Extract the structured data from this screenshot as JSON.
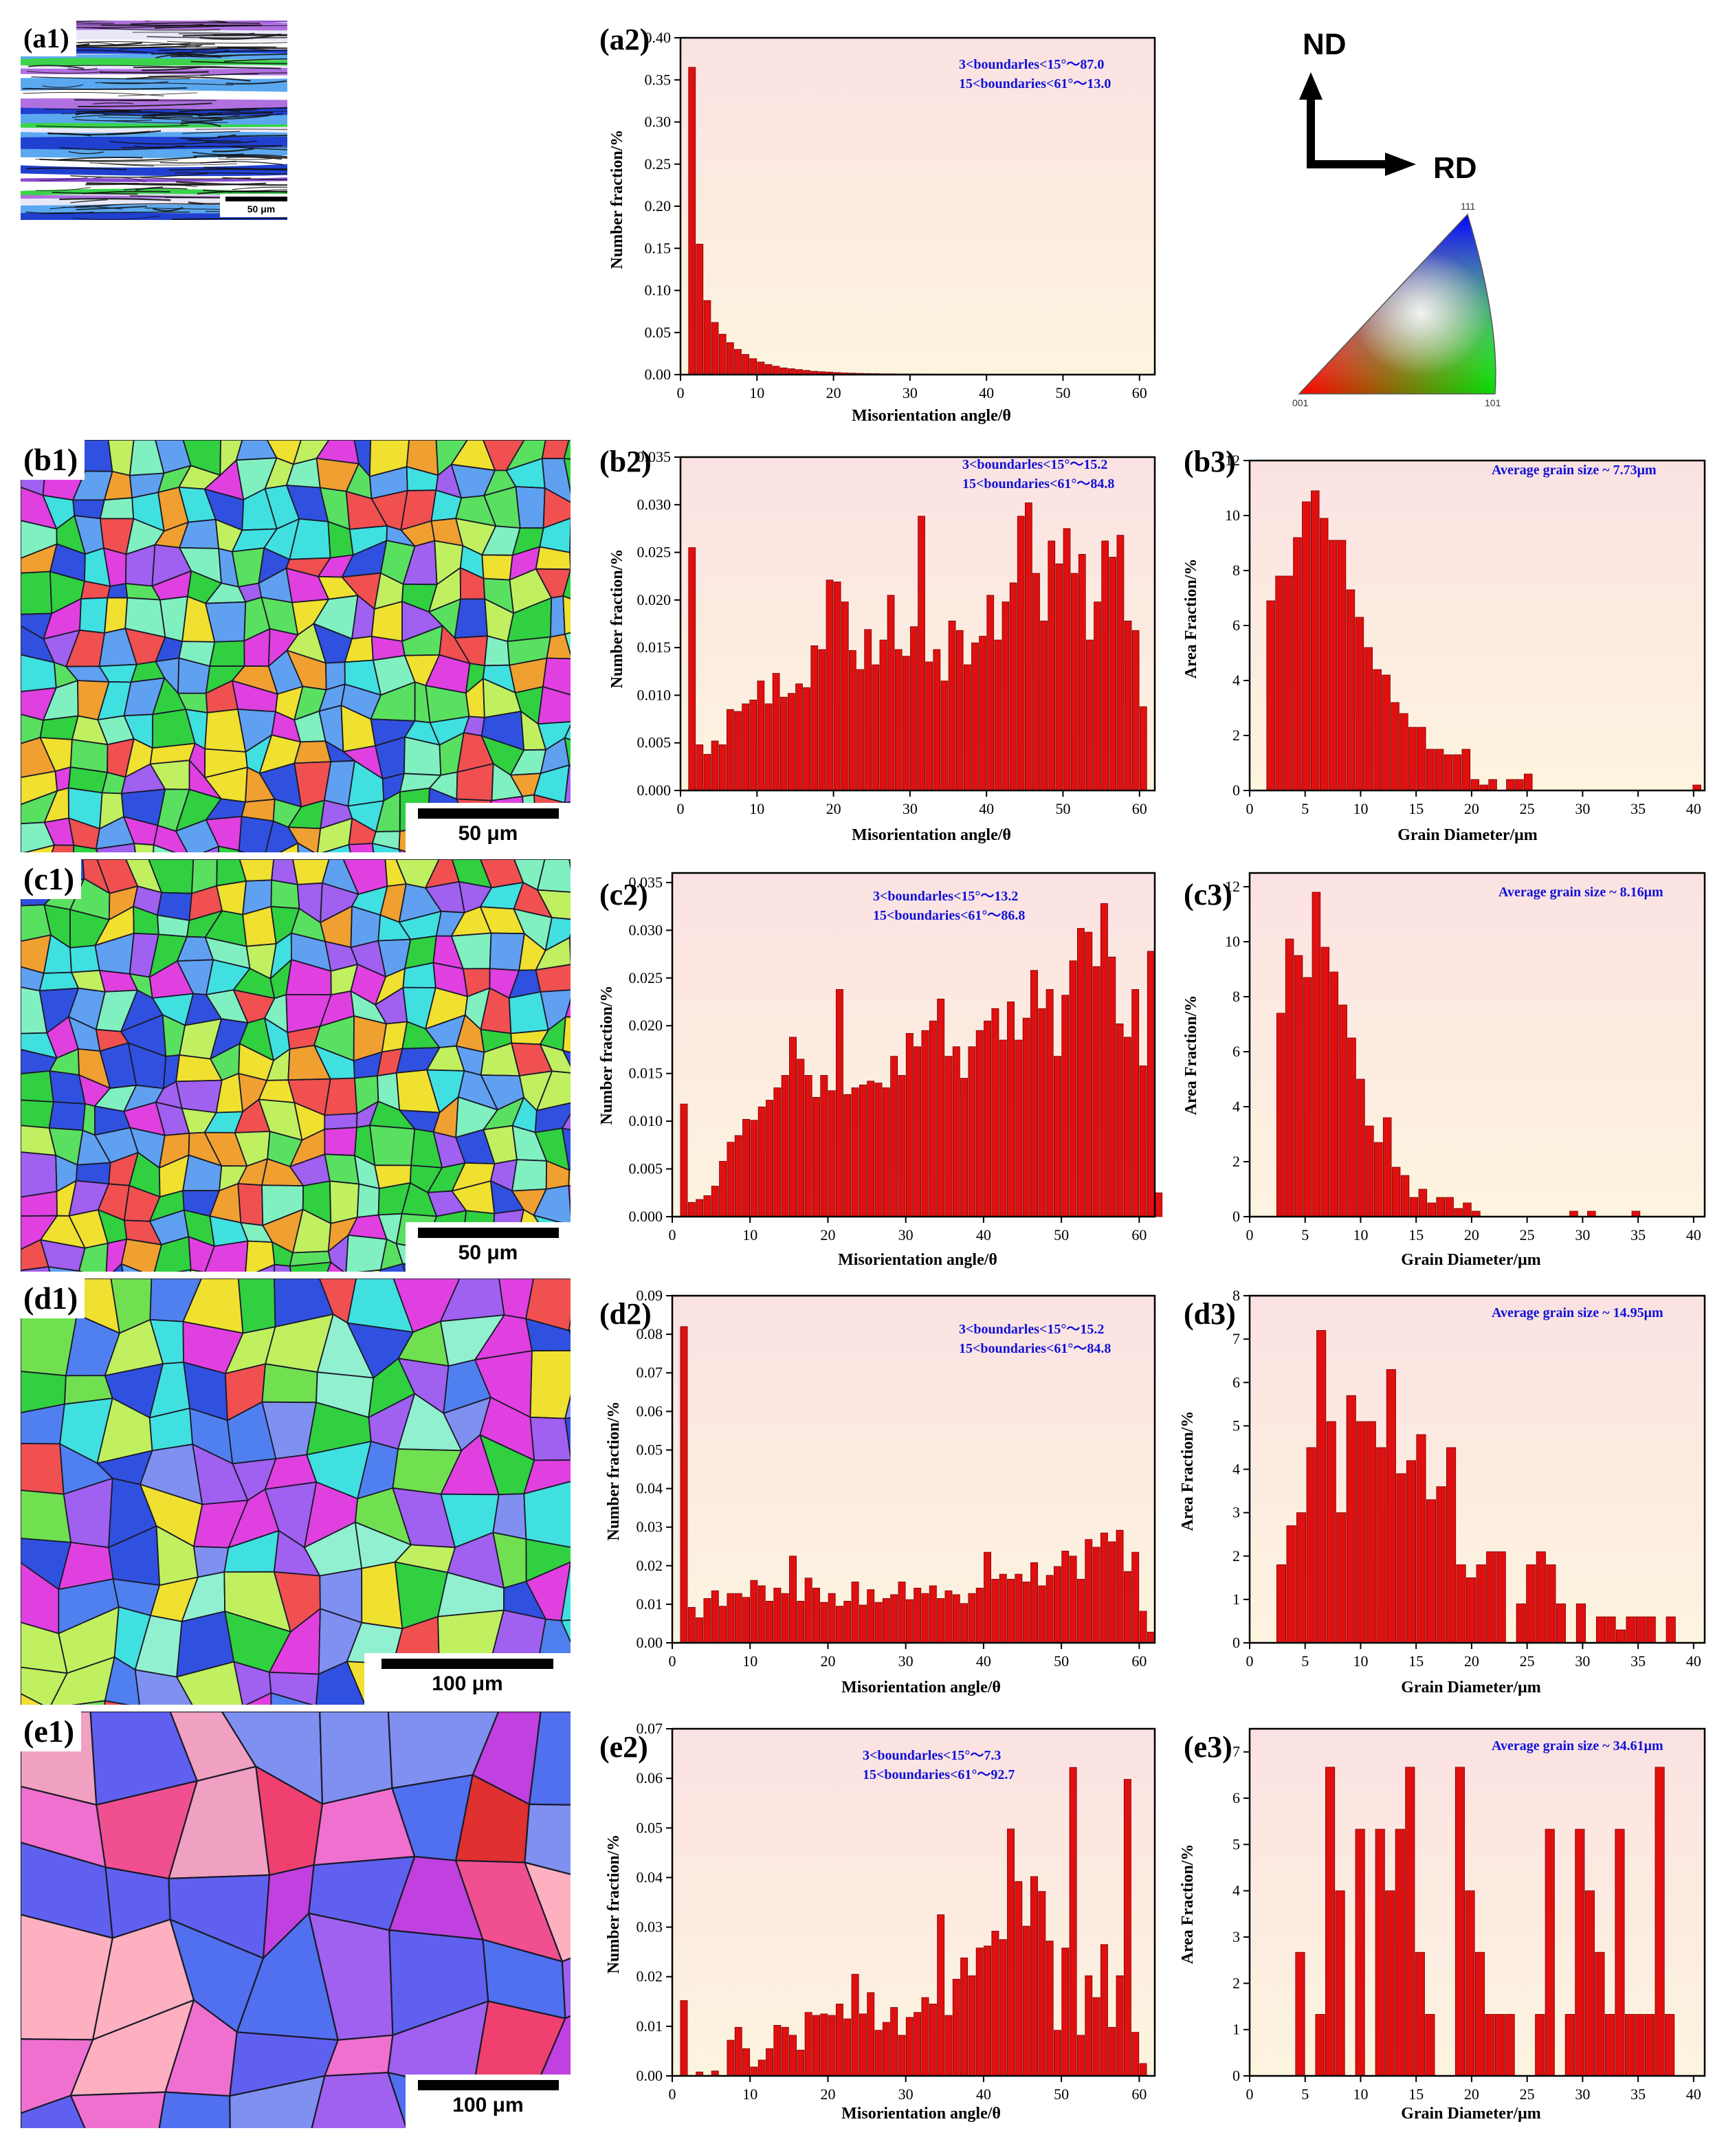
{
  "maps": [
    {
      "id": "a1",
      "label": "(a1)",
      "scale": "50 μm",
      "palette": [
        "#3ad34a",
        "#5aa8f0",
        "#b070e0",
        "#2040d0",
        "#e8e8f8",
        "#60d8c0",
        "#ffffff",
        "#8a4ad0"
      ],
      "style": "deformed"
    },
    {
      "id": "b1",
      "label": "(b1)",
      "scale": "50 μm",
      "palette": [
        "#30d040",
        "#5ae060",
        "#40e0e0",
        "#3050e0",
        "#e040e0",
        "#f0e030",
        "#a060f0",
        "#80f0c0",
        "#f05050",
        "#f0a030",
        "#60a0f0",
        "#c0f060"
      ],
      "style": "fine"
    },
    {
      "id": "c1",
      "label": "(c1)",
      "scale": "50 μm",
      "palette": [
        "#30d040",
        "#5ae060",
        "#40e0e0",
        "#3050e0",
        "#e040e0",
        "#f0e030",
        "#a060f0",
        "#80f0c0",
        "#f05050",
        "#f0a030",
        "#60a0f0",
        "#c0f060"
      ],
      "style": "fine"
    },
    {
      "id": "d1",
      "label": "(d1)",
      "scale": "100 μm",
      "palette": [
        "#30d040",
        "#70e050",
        "#40e0e0",
        "#3050e0",
        "#e040e0",
        "#f0e030",
        "#a060f0",
        "#90f0d0",
        "#f05050",
        "#5080f0",
        "#c0f060",
        "#8090f0"
      ],
      "style": "medium"
    },
    {
      "id": "e1",
      "label": "(e1)",
      "scale": "100 μm",
      "palette": [
        "#f04070",
        "#3050e0",
        "#f070d0",
        "#6060f0",
        "#e03030",
        "#a060f0",
        "#f0a0c0",
        "#8090f0",
        "#f05090",
        "#5070f0",
        "#ffb0c0",
        "#c040e0"
      ],
      "style": "coarse"
    }
  ],
  "legend": {
    "nd": "ND",
    "rd": "RD",
    "ipf": {
      "top": "111",
      "left": "001",
      "right": "101"
    }
  },
  "chart_data": [
    {
      "id": "a2",
      "label": "(a2)",
      "type": "bar",
      "xlabel": "Misorientation angle/θ",
      "ylabel": "Number fraction/%",
      "xlim": [
        0,
        62
      ],
      "xticks": [
        0,
        10,
        20,
        30,
        40,
        50,
        60
      ],
      "ylim": [
        0,
        0.4
      ],
      "yticks": [
        0,
        0.05,
        0.1,
        0.15,
        0.2,
        0.25,
        0.3,
        0.35,
        0.4
      ],
      "ydec": 2,
      "binStart": 1,
      "binWidth": 1,
      "annotation": [
        "3<boundarles<15°～87.0",
        "15<boundaries<61°～13.0"
      ],
      "values": [
        0.365,
        0.155,
        0.088,
        0.062,
        0.048,
        0.038,
        0.03,
        0.024,
        0.019,
        0.015,
        0.012,
        0.01,
        0.008,
        0.007,
        0.006,
        0.005,
        0.004,
        0.0035,
        0.003,
        0.0025,
        0.002,
        0.0018,
        0.0015,
        0.0013,
        0.0012,
        0.001,
        0.001,
        0.0009,
        0.0008,
        0.0008,
        0.0007,
        0.0007,
        0.0006,
        0.0006,
        0.0006,
        0.0005,
        0.0005,
        0.0005,
        0.0004,
        0.0004,
        0.0004,
        0.0004,
        0.0003,
        0.0003,
        0.0003,
        0.0003,
        0.0003,
        0.0003,
        0.0002,
        0.0002,
        0.0002,
        0.0002,
        0.0002,
        0.0002,
        0.0002,
        0.0002,
        0.0002,
        0.0002,
        0.0002,
        0.0002
      ]
    },
    {
      "id": "b2",
      "label": "(b2)",
      "type": "bar",
      "xlabel": "Misorientation angle/θ",
      "ylabel": "Number fraction/%",
      "xlim": [
        0,
        62
      ],
      "xticks": [
        0,
        10,
        20,
        30,
        40,
        50,
        60
      ],
      "ylim": [
        0,
        0.035
      ],
      "yticks": [
        0,
        0.005,
        0.01,
        0.015,
        0.02,
        0.025,
        0.03,
        0.035
      ],
      "ydec": 3,
      "binStart": 1,
      "binWidth": 1,
      "annotation": [
        "3<boundarles<15°～15.2",
        "15<boundaries<61°～84.8"
      ],
      "values": [
        0.0255,
        0.0048,
        0.0038,
        0.0052,
        0.0048,
        0.0085,
        0.0083,
        0.0091,
        0.0095,
        0.0115,
        0.0091,
        0.0123,
        0.0098,
        0.0102,
        0.0112,
        0.0108,
        0.0152,
        0.0148,
        0.0221,
        0.0219,
        0.0198,
        0.0147,
        0.0127,
        0.0169,
        0.0132,
        0.0158,
        0.0205,
        0.0148,
        0.0141,
        0.0172,
        0.0288,
        0.0135,
        0.0148,
        0.0115,
        0.0178,
        0.0168,
        0.0132,
        0.0155,
        0.0162,
        0.0205,
        0.0158,
        0.0198,
        0.0218,
        0.0288,
        0.0302,
        0.0228,
        0.0178,
        0.0262,
        0.0238,
        0.0275,
        0.0228,
        0.0248,
        0.0158,
        0.0198,
        0.0262,
        0.0245,
        0.0268,
        0.0178,
        0.0168,
        0.0088
      ]
    },
    {
      "id": "b3",
      "label": "(b3)",
      "type": "bar",
      "xlabel": "Grain Diameter/μm",
      "ylabel": "Area Fraction/%",
      "xlim": [
        0,
        41
      ],
      "xticks": [
        0,
        5,
        10,
        15,
        20,
        25,
        30,
        35,
        40
      ],
      "ylim": [
        0,
        12
      ],
      "yticks": [
        0,
        2,
        4,
        6,
        8,
        10,
        12
      ],
      "ydec": 0,
      "binStart": 1.5,
      "binWidth": 0.8,
      "annotation": [
        "Average grain size ~ 7.73μm"
      ],
      "values": [
        6.9,
        7.8,
        7.8,
        9.2,
        10.5,
        10.9,
        9.9,
        9.1,
        9.1,
        7.3,
        6.3,
        5.2,
        4.4,
        4.2,
        3.2,
        2.8,
        2.3,
        2.3,
        1.5,
        1.5,
        1.3,
        1.3,
        1.5,
        0.4,
        0.2,
        0.4,
        0,
        0.4,
        0.4,
        0.6,
        0,
        0,
        0,
        0,
        0,
        0,
        0,
        0,
        0,
        0,
        0,
        0,
        0,
        0,
        0,
        0,
        0,
        0,
        0.2
      ]
    },
    {
      "id": "c2",
      "label": "(c2)",
      "type": "bar",
      "xlabel": "Misorientation angle/θ",
      "ylabel": "Number fraction/%",
      "xlim": [
        0,
        62
      ],
      "xticks": [
        0,
        10,
        20,
        30,
        40,
        50,
        60
      ],
      "ylim": [
        0,
        0.036
      ],
      "yticks": [
        0,
        0.005,
        0.01,
        0.015,
        0.02,
        0.025,
        0.03,
        0.035
      ],
      "ydec": 3,
      "binStart": 1,
      "binWidth": 1,
      "annotation": [
        "3<boundarles<15°～13.2",
        "15<boundaries<61°～86.8"
      ],
      "values": [
        0.0118,
        0.0015,
        0.0018,
        0.0022,
        0.0032,
        0.0058,
        0.0078,
        0.0085,
        0.0102,
        0.0101,
        0.0115,
        0.0122,
        0.0135,
        0.0148,
        0.0188,
        0.0165,
        0.0148,
        0.0125,
        0.0148,
        0.0132,
        0.0238,
        0.0128,
        0.0135,
        0.0138,
        0.0142,
        0.014,
        0.0135,
        0.0168,
        0.0148,
        0.0192,
        0.0178,
        0.0195,
        0.0205,
        0.0228,
        0.0168,
        0.0178,
        0.0145,
        0.0178,
        0.0195,
        0.0205,
        0.0218,
        0.0185,
        0.0225,
        0.0185,
        0.0208,
        0.0258,
        0.0218,
        0.0238,
        0.0168,
        0.0232,
        0.0268,
        0.0302,
        0.0298,
        0.0262,
        0.0328,
        0.0272,
        0.0202,
        0.0188,
        0.0238,
        0.0158,
        0.0278,
        0.0025
      ]
    },
    {
      "id": "c3",
      "label": "(c3)",
      "type": "bar",
      "xlabel": "Grain Diameter/μm",
      "ylabel": "Area Fraction/%",
      "xlim": [
        0,
        41
      ],
      "xticks": [
        0,
        5,
        10,
        15,
        20,
        25,
        30,
        35,
        40
      ],
      "ylim": [
        0,
        12.5
      ],
      "yticks": [
        0,
        2,
        4,
        6,
        8,
        10,
        12
      ],
      "ydec": 0,
      "binStart": 2.4,
      "binWidth": 0.8,
      "annotation": [
        "Average grain size ~ 8.16μm"
      ],
      "values": [
        7.4,
        10.1,
        9.5,
        8.7,
        11.8,
        9.8,
        8.9,
        7.7,
        6.5,
        5.0,
        3.3,
        2.7,
        3.6,
        1.8,
        1.5,
        0.7,
        1.0,
        0.5,
        0.7,
        0.7,
        0.3,
        0.5,
        0.2,
        0,
        0,
        0,
        0,
        0,
        0,
        0,
        0,
        0,
        0,
        0.2,
        0,
        0.2,
        0,
        0,
        0,
        0,
        0.2
      ]
    },
    {
      "id": "d2",
      "label": "(d2)",
      "type": "bar",
      "xlabel": "Misorientation angle/θ",
      "ylabel": "Number fraction/%",
      "xlim": [
        0,
        62
      ],
      "xticks": [
        0,
        10,
        20,
        30,
        40,
        50,
        60
      ],
      "ylim": [
        0,
        0.09
      ],
      "yticks": [
        0,
        0.01,
        0.02,
        0.03,
        0.04,
        0.05,
        0.06,
        0.07,
        0.08,
        0.09
      ],
      "ydec": 2,
      "binStart": 1,
      "binWidth": 1,
      "annotation": [
        "3<boundarles<15°～15.2",
        "15<boundaries<61°～84.8"
      ],
      "values": [
        0.082,
        0.0092,
        0.0065,
        0.0115,
        0.0135,
        0.0095,
        0.0128,
        0.0128,
        0.0118,
        0.0162,
        0.0148,
        0.0108,
        0.0142,
        0.0128,
        0.0225,
        0.0108,
        0.0168,
        0.0142,
        0.0105,
        0.0128,
        0.0095,
        0.0108,
        0.0158,
        0.0098,
        0.0138,
        0.0105,
        0.0115,
        0.0125,
        0.0158,
        0.0112,
        0.0142,
        0.0128,
        0.0148,
        0.0115,
        0.0135,
        0.0125,
        0.0102,
        0.0128,
        0.0142,
        0.0235,
        0.0165,
        0.0178,
        0.0165,
        0.0178,
        0.0158,
        0.0208,
        0.0148,
        0.0175,
        0.0198,
        0.0238,
        0.0225,
        0.0165,
        0.0268,
        0.0248,
        0.0285,
        0.0262,
        0.0292,
        0.0185,
        0.0235,
        0.0082,
        0.0028
      ]
    },
    {
      "id": "d3",
      "label": "(d3)",
      "type": "bar",
      "xlabel": "Grain Diameter/μm",
      "ylabel": "Area Fraction/%",
      "xlim": [
        0,
        41
      ],
      "xticks": [
        0,
        5,
        10,
        15,
        20,
        25,
        30,
        35,
        40
      ],
      "ylim": [
        0,
        8
      ],
      "yticks": [
        0,
        1,
        2,
        3,
        4,
        5,
        6,
        7,
        8
      ],
      "ydec": 0,
      "binStart": 2.4,
      "binWidth": 0.9,
      "annotation": [
        "Average grain size ~ 14.95μm"
      ],
      "values": [
        1.8,
        2.7,
        3.0,
        4.5,
        7.2,
        5.1,
        3.0,
        5.7,
        5.1,
        5.1,
        4.5,
        6.3,
        3.9,
        4.2,
        4.8,
        3.3,
        3.6,
        4.5,
        1.8,
        1.5,
        1.8,
        2.1,
        2.1,
        0,
        0.9,
        1.8,
        2.1,
        1.8,
        0.9,
        0,
        0.9,
        0,
        0.6,
        0.6,
        0.3,
        0.6,
        0.6,
        0.6,
        0,
        0.6
      ]
    },
    {
      "id": "e2",
      "label": "(e2)",
      "type": "bar",
      "xlabel": "Misorientation angle/θ",
      "ylabel": "Number fraction/%",
      "xlim": [
        0,
        62
      ],
      "xticks": [
        0,
        10,
        20,
        30,
        40,
        50,
        60
      ],
      "ylim": [
        0,
        0.07
      ],
      "yticks": [
        0,
        0.01,
        0.02,
        0.03,
        0.04,
        0.05,
        0.06,
        0.07
      ],
      "ydec": 2,
      "binStart": 1,
      "binWidth": 1,
      "annotation": [
        "3<boundarles<15°～7.3",
        "15<boundaries<61°～92.7"
      ],
      "values": [
        0.0152,
        0,
        0.0008,
        0,
        0.001,
        0,
        0.0072,
        0.0098,
        0.0055,
        0.0018,
        0.0032,
        0.0055,
        0.0102,
        0.0098,
        0.0082,
        0.0052,
        0.0128,
        0.0122,
        0.0125,
        0.0122,
        0.0145,
        0.0115,
        0.0205,
        0.0125,
        0.0168,
        0.0092,
        0.0108,
        0.0138,
        0.0082,
        0.0118,
        0.0128,
        0.0158,
        0.0145,
        0.0325,
        0.0122,
        0.0195,
        0.0238,
        0.0202,
        0.0258,
        0.0262,
        0.0292,
        0.0275,
        0.0498,
        0.0392,
        0.0302,
        0.0402,
        0.0372,
        0.0272,
        0.0092,
        0.0258,
        0.0622,
        0.0082,
        0.0202,
        0.0158,
        0.0265,
        0.0098,
        0.0202,
        0.0598,
        0.0088,
        0.0025,
        0,
        0
      ]
    },
    {
      "id": "e3",
      "label": "(e3)",
      "type": "bar",
      "xlabel": "Grain Diameter/μm",
      "ylabel": "Area Fraction/%",
      "xlim": [
        0,
        41
      ],
      "xticks": [
        0,
        5,
        10,
        15,
        20,
        25,
        30,
        35,
        40
      ],
      "ylim": [
        0,
        7.5
      ],
      "yticks": [
        0,
        1,
        2,
        3,
        4,
        5,
        6,
        7
      ],
      "ydec": 0,
      "binStart": 0.5,
      "binWidth": 0.9,
      "annotation": [
        "Average grain size ~ 34.61μm"
      ],
      "values": [
        0,
        0,
        0,
        0,
        2.67,
        0,
        1.33,
        6.67,
        4.0,
        0,
        5.33,
        0,
        5.33,
        4.0,
        5.33,
        6.67,
        2.67,
        1.33,
        0,
        0,
        6.67,
        4.0,
        2.67,
        1.33,
        1.33,
        1.33,
        0,
        0,
        1.33,
        5.33,
        0,
        1.33,
        5.33,
        4.0,
        2.67,
        1.33,
        5.33,
        1.33,
        1.33,
        1.33,
        6.67,
        1.33
      ]
    }
  ]
}
